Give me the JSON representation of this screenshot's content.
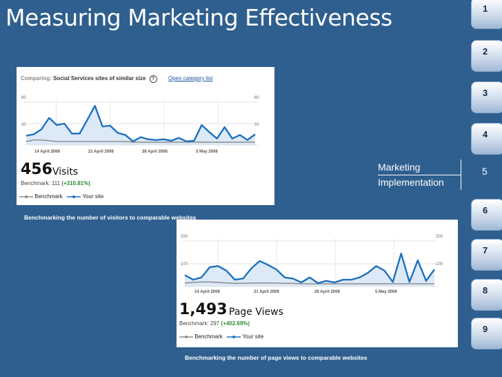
{
  "slide": {
    "title": "Measuring Marketing Effectiveness"
  },
  "nav": {
    "tabs": [
      {
        "label": "1",
        "current": false
      },
      {
        "label": "2",
        "current": false
      },
      {
        "label": "3",
        "current": false
      },
      {
        "label": "4",
        "current": false
      },
      {
        "label": "5",
        "current": true
      },
      {
        "label": "6",
        "current": false
      },
      {
        "label": "7",
        "current": false
      },
      {
        "label": "8",
        "current": false
      },
      {
        "label": "9",
        "current": false
      }
    ],
    "current_section": [
      "Marketing",
      "Implementation"
    ]
  },
  "visits_panel": {
    "comparing_prefix": "Comparing:",
    "comparing_value": "Social Services sites of similar size",
    "link": "Open category list",
    "y_top": "60",
    "y_mid": "30",
    "dates": [
      "14 April 2008",
      "21 April 2008",
      "28 April 2008",
      "5 May 2008"
    ],
    "big_number": "456",
    "unit": "Visits",
    "benchmark_text": "Benchmark: 111",
    "benchmark_pct": "(+310.81%)",
    "legend_benchmark": "Benchmark",
    "legend_site": "Your site",
    "caption": "Benchmarking the number of visitors to comparable websites"
  },
  "pageviews_panel": {
    "y_top": "200",
    "y_mid": "100",
    "dates": [
      "14 April 2008",
      "21 April 2008",
      "28 April 2008",
      "5 May 2008"
    ],
    "big_number": "1,493",
    "unit": "Page Views",
    "benchmark_text": "Benchmark: 297",
    "benchmark_pct": "(+402.69%)",
    "legend_benchmark": "Benchmark",
    "legend_site": "Your site",
    "caption": "Benchmarking the number of page views to comparable websites"
  },
  "chart_data": [
    {
      "type": "area",
      "ylim": [
        0,
        60
      ],
      "series": [
        {
          "name": "Your site",
          "values": [
            13,
            15,
            22,
            38,
            28,
            30,
            16,
            16,
            35,
            55,
            26,
            27,
            17,
            14,
            5,
            11,
            8,
            7,
            8,
            6,
            10,
            5,
            6,
            28,
            18,
            9,
            25,
            9,
            14,
            7,
            15
          ]
        },
        {
          "name": "Benchmark",
          "values": [
            5,
            7,
            7,
            6,
            5,
            5,
            5,
            5,
            5,
            5,
            5,
            5,
            5,
            5,
            4,
            4,
            4,
            4,
            4,
            4,
            4,
            4,
            4,
            4,
            4,
            4,
            4,
            4,
            4,
            4,
            4
          ]
        }
      ],
      "colors": {
        "site": "#1d6fbf",
        "benchmark": "#8c8c8c",
        "fill": "#dce9f6"
      }
    },
    {
      "type": "area",
      "ylim": [
        0,
        200
      ],
      "series": [
        {
          "name": "Your site",
          "values": [
            50,
            30,
            40,
            85,
            90,
            70,
            30,
            35,
            80,
            112,
            95,
            75,
            40,
            35,
            18,
            40,
            15,
            25,
            18,
            30,
            30,
            40,
            60,
            90,
            70,
            20,
            145,
            20,
            115,
            25,
            75
          ]
        },
        {
          "name": "Benchmark",
          "values": [
            15,
            18,
            20,
            20,
            18,
            16,
            14,
            14,
            15,
            16,
            16,
            15,
            14,
            14,
            12,
            12,
            12,
            12,
            12,
            12,
            12,
            12,
            12,
            12,
            12,
            12,
            12,
            12,
            12,
            12,
            12
          ]
        }
      ],
      "colors": {
        "site": "#1d6fbf",
        "benchmark": "#8c8c8c",
        "fill": "#dce9f6"
      }
    }
  ]
}
